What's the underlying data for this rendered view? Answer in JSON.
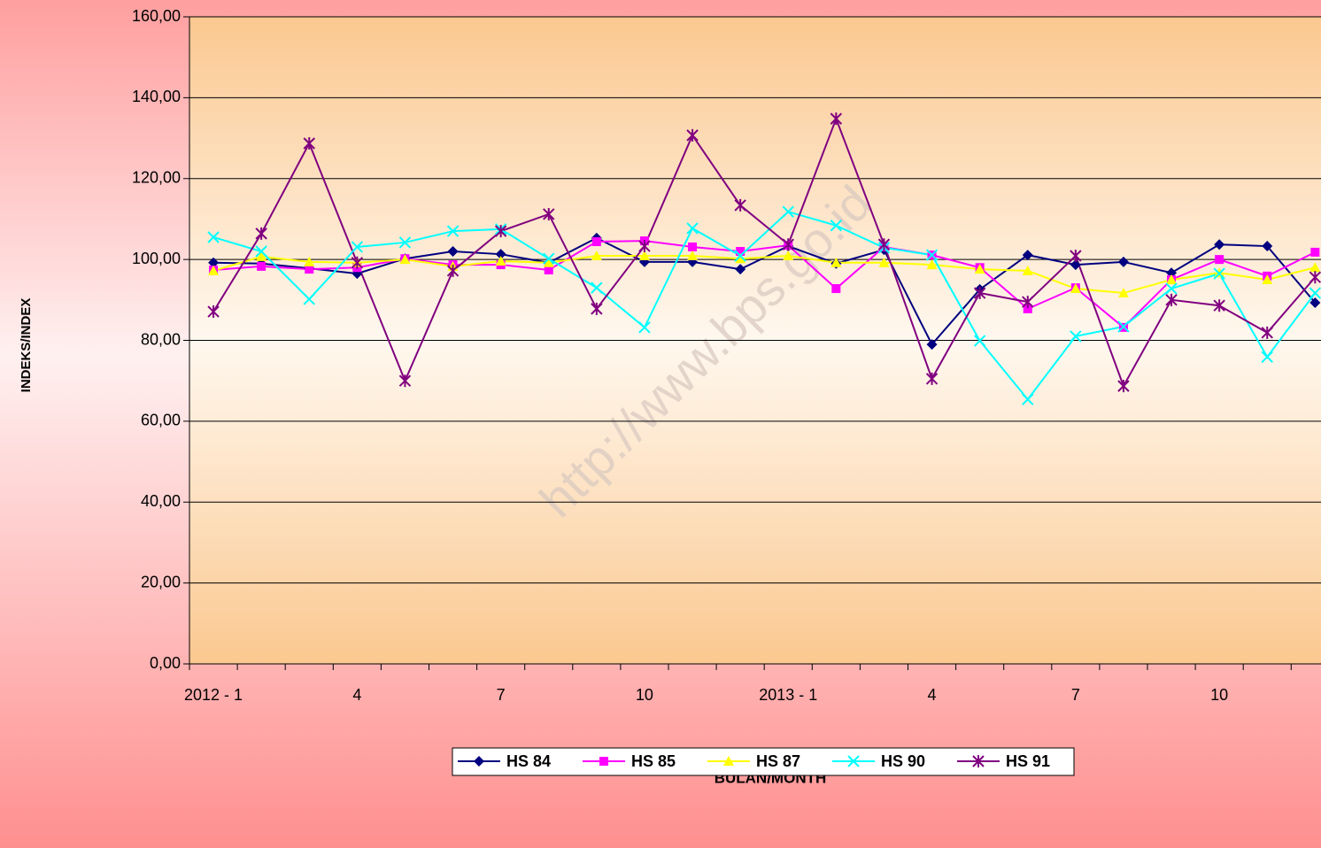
{
  "chart_data": {
    "type": "line",
    "x_label": "BULAN/MONTH",
    "y_label": "INDEKS/INDEX",
    "watermark": "http://www.bps.go.id",
    "categories": [
      "2012 - 1",
      null,
      null,
      "4",
      null,
      null,
      "7",
      null,
      null,
      "10",
      null,
      null,
      "2013 - 1",
      null,
      null,
      "4",
      null,
      null,
      "7",
      null,
      null,
      "10",
      null,
      null
    ],
    "series": [
      {
        "name": "HS 84",
        "color": "#000080",
        "marker": "diamond",
        "values": [
          99.2,
          99,
          97.8,
          96.5,
          100.2,
          102,
          101.3,
          99.2,
          105.3,
          99.4,
          99.4,
          97.6,
          103.3,
          99,
          102.4,
          79,
          92.6,
          101.1,
          98.7,
          99.4,
          96.7,
          103.7,
          103.3,
          89.3
        ]
      },
      {
        "name": "HS 85",
        "color": "#ff00ff",
        "marker": "square",
        "values": [
          97.4,
          98.3,
          97.6,
          98,
          100.2,
          98.7,
          98.7,
          97.4,
          104.4,
          104.6,
          103.1,
          102,
          103.5,
          92.8,
          103.1,
          101.1,
          98,
          87.8,
          93,
          83.2,
          95,
          100,
          95.9,
          101.8
        ]
      },
      {
        "name": "HS 87",
        "color": "#ffff00",
        "marker": "triangle",
        "values": [
          97.2,
          100.7,
          99.4,
          99.2,
          100,
          98.3,
          99.6,
          99.2,
          100.9,
          100.9,
          100.9,
          100.2,
          100.9,
          99.2,
          99.2,
          98.7,
          97.6,
          97.2,
          92.8,
          91.7,
          95,
          96.7,
          95,
          98
        ]
      },
      {
        "name": "HS 90",
        "color": "#00ffff",
        "marker": "x",
        "values": [
          105.5,
          102,
          90.2,
          103.1,
          104.2,
          107,
          107.5,
          100.2,
          93,
          83.2,
          107.7,
          100.9,
          111.8,
          108.4,
          102.9,
          101.1,
          79.9,
          65.4,
          81,
          83.4,
          92.8,
          96.5,
          75.9,
          91.7
        ]
      },
      {
        "name": "HS 91",
        "color": "#800080",
        "marker": "asterisk",
        "values": [
          87.1,
          106.4,
          128.7,
          99.2,
          70,
          97.2,
          107,
          111.2,
          87.8,
          103.3,
          130.7,
          113.4,
          103.7,
          134.8,
          103.7,
          70.5,
          91.7,
          89.5,
          100.9,
          68.7,
          90,
          88.6,
          81.9,
          95.6
        ]
      }
    ],
    "ylim": [
      0,
      160
    ],
    "yticks": [
      {
        "value": 0,
        "label": "0,00"
      },
      {
        "value": 20,
        "label": "20,00"
      },
      {
        "value": 40,
        "label": "40,00"
      },
      {
        "value": 60,
        "label": "60,00"
      },
      {
        "value": 80,
        "label": "80,00"
      },
      {
        "value": 100,
        "label": "100,00"
      },
      {
        "value": 120,
        "label": "120,00"
      },
      {
        "value": 140,
        "label": "140,00"
      },
      {
        "value": 160,
        "label": "160,00"
      }
    ],
    "grid": true,
    "legend": "bottom"
  }
}
